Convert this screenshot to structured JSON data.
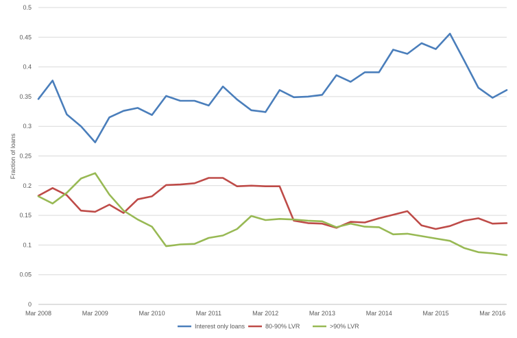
{
  "chart_data": {
    "type": "line",
    "ylabel": "Fraction of loans",
    "xlabel": "",
    "ylim": [
      0,
      0.5
    ],
    "yticks": [
      "0",
      "0.05",
      "0.1",
      "0.15",
      "0.2",
      "0.25",
      "0.3",
      "0.35",
      "0.4",
      "0.45",
      "0.5"
    ],
    "ytick_values": [
      0,
      0.05,
      0.1,
      0.15,
      0.2,
      0.25,
      0.3,
      0.35,
      0.4,
      0.45,
      0.5
    ],
    "xticks": [
      "Mar 2008",
      "Mar 2009",
      "Mar 2010",
      "Mar 2011",
      "Mar 2012",
      "Mar 2013",
      "Mar 2014",
      "Mar 2015",
      "Mar 2016"
    ],
    "xtick_quarter_index": [
      0,
      4,
      8,
      12,
      16,
      20,
      24,
      28,
      32
    ],
    "categories": [
      "Mar 2008",
      "Jun 2008",
      "Sep 2008",
      "Dec 2008",
      "Mar 2009",
      "Jun 2009",
      "Sep 2009",
      "Dec 2009",
      "Mar 2010",
      "Jun 2010",
      "Sep 2010",
      "Dec 2010",
      "Mar 2011",
      "Jun 2011",
      "Sep 2011",
      "Dec 2011",
      "Mar 2012",
      "Jun 2012",
      "Sep 2012",
      "Dec 2012",
      "Mar 2013",
      "Jun 2013",
      "Sep 2013",
      "Dec 2013",
      "Mar 2014",
      "Jun 2014",
      "Sep 2014",
      "Dec 2014",
      "Mar 2015",
      "Jun 2015",
      "Sep 2015",
      "Dec 2015",
      "Mar 2016",
      "Jun 2016"
    ],
    "grid": true,
    "legend_position": "bottom",
    "series": [
      {
        "name": "Interest only loans",
        "color": "#4a7ebb",
        "values": [
          0.346,
          0.377,
          0.32,
          0.3,
          0.273,
          0.315,
          0.326,
          0.331,
          0.319,
          0.351,
          0.343,
          0.343,
          0.335,
          0.367,
          0.345,
          0.327,
          0.324,
          0.361,
          0.349,
          0.35,
          0.353,
          0.386,
          0.375,
          0.391,
          0.391,
          0.429,
          0.422,
          0.44,
          0.43,
          0.456,
          0.411,
          0.365,
          0.348,
          0.361
        ]
      },
      {
        "name": "80-90% LVR",
        "color": "#be4b48",
        "values": [
          0.183,
          0.196,
          0.184,
          0.158,
          0.156,
          0.168,
          0.154,
          0.177,
          0.182,
          0.201,
          0.202,
          0.204,
          0.213,
          0.213,
          0.199,
          0.2,
          0.199,
          0.199,
          0.141,
          0.137,
          0.136,
          0.129,
          0.139,
          0.138,
          0.145,
          0.151,
          0.157,
          0.133,
          0.127,
          0.132,
          0.141,
          0.145,
          0.136,
          0.137
        ]
      },
      {
        "name": ">90% LVR",
        "color": "#98b954",
        "values": [
          0.182,
          0.17,
          0.188,
          0.212,
          0.221,
          0.185,
          0.158,
          0.143,
          0.131,
          0.098,
          0.101,
          0.102,
          0.112,
          0.116,
          0.127,
          0.149,
          0.142,
          0.144,
          0.143,
          0.141,
          0.14,
          0.13,
          0.136,
          0.131,
          0.13,
          0.118,
          0.119,
          0.115,
          0.111,
          0.107,
          0.095,
          0.088,
          0.086,
          0.083
        ]
      }
    ]
  }
}
